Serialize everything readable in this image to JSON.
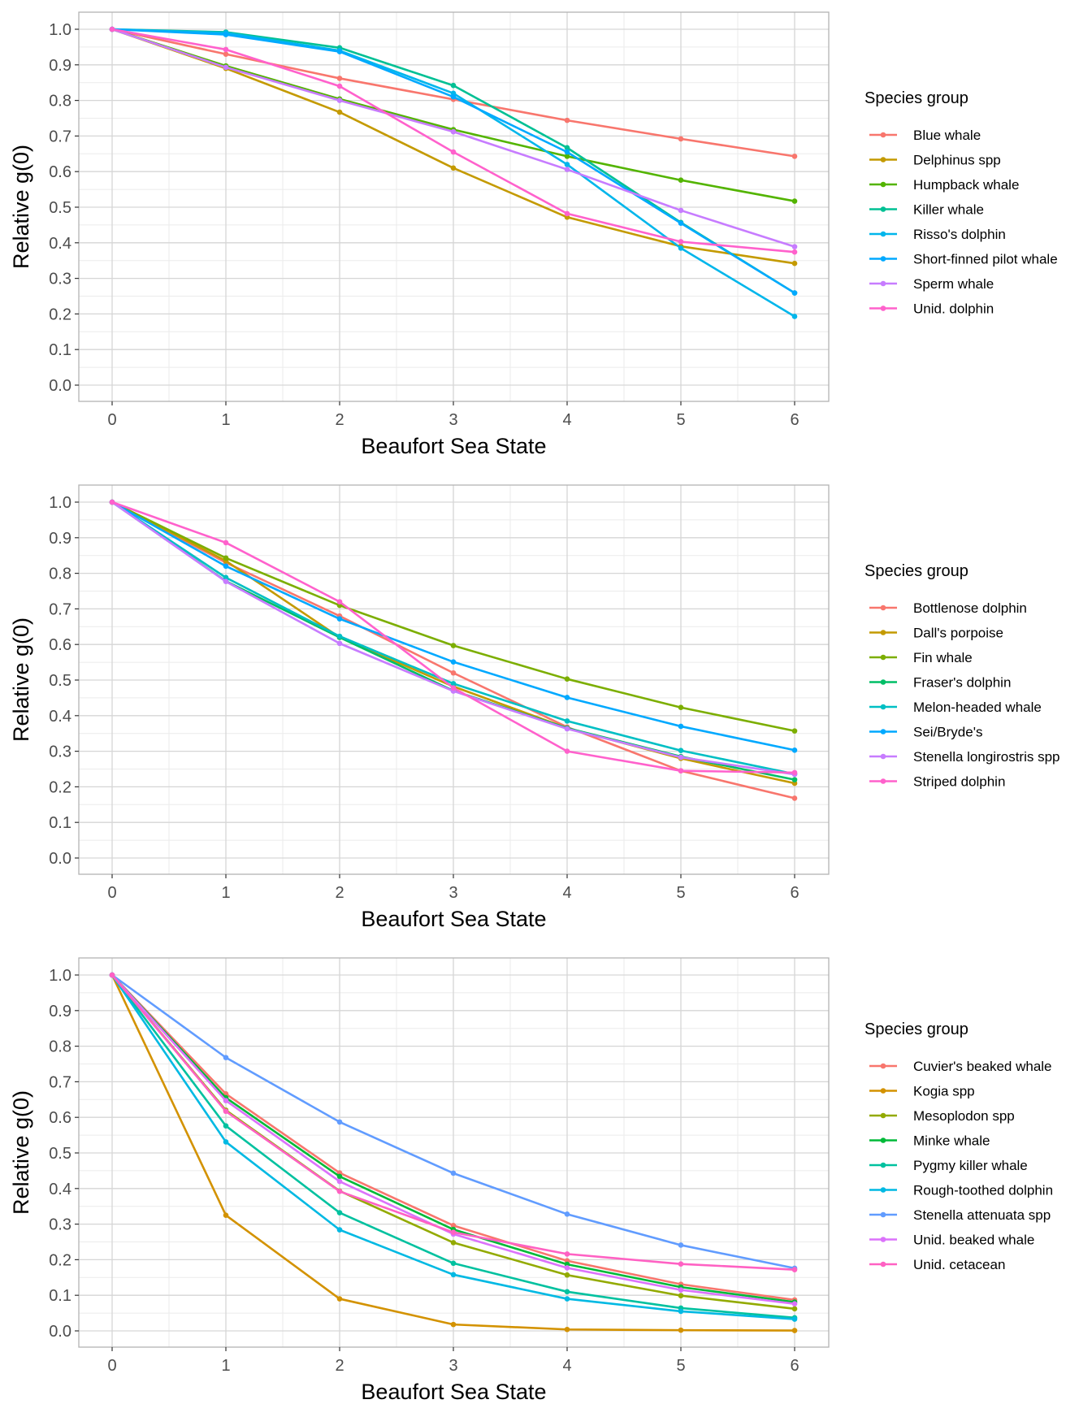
{
  "chart_data": [
    {
      "type": "line",
      "xlabel": "Beaufort Sea State",
      "ylabel": "Relative g(0)",
      "xlim": [
        0,
        6
      ],
      "ylim": [
        0,
        1
      ],
      "x_ticks": [
        "0",
        "1",
        "2",
        "3",
        "4",
        "5",
        "6"
      ],
      "y_ticks": [
        "0.0",
        "0.1",
        "0.2",
        "0.3",
        "0.4",
        "0.5",
        "0.6",
        "0.7",
        "0.8",
        "0.9",
        "1.0"
      ],
      "grid": true,
      "legend_title": "Species group",
      "legend_position": "right",
      "x": [
        0,
        1,
        2,
        3,
        4,
        5,
        6
      ],
      "series": [
        {
          "name": "Blue whale",
          "color": "#F8766D",
          "values": [
            1.0,
            0.93,
            0.862,
            0.803,
            0.744,
            0.692,
            0.643
          ]
        },
        {
          "name": "Delphinus spp",
          "color": "#C49A00",
          "values": [
            1.0,
            0.89,
            0.767,
            0.61,
            0.472,
            0.39,
            0.342
          ]
        },
        {
          "name": "Humpback whale",
          "color": "#53B400",
          "values": [
            1.0,
            0.897,
            0.804,
            0.718,
            0.643,
            0.576,
            0.517
          ]
        },
        {
          "name": "Killer whale",
          "color": "#00C094",
          "values": [
            1.0,
            0.992,
            0.948,
            0.842,
            0.667,
            0.457,
            0.259
          ]
        },
        {
          "name": "Risso's dolphin",
          "color": "#00B6EB",
          "values": [
            1.0,
            0.99,
            0.94,
            0.82,
            0.62,
            0.385,
            0.193
          ]
        },
        {
          "name": "Short-finned pilot whale",
          "color": "#00A9FF",
          "values": [
            1.0,
            0.985,
            0.937,
            0.81,
            0.655,
            0.455,
            0.259
          ]
        },
        {
          "name": "Sperm whale",
          "color": "#C77CFF",
          "values": [
            1.0,
            0.893,
            0.8,
            0.712,
            0.606,
            0.491,
            0.389
          ]
        },
        {
          "name": "Unid. dolphin",
          "color": "#FF61CC",
          "values": [
            1.0,
            0.943,
            0.84,
            0.655,
            0.482,
            0.403,
            0.374
          ]
        }
      ]
    },
    {
      "type": "line",
      "xlabel": "Beaufort Sea State",
      "ylabel": "Relative g(0)",
      "xlim": [
        0,
        6
      ],
      "ylim": [
        0,
        1
      ],
      "x_ticks": [
        "0",
        "1",
        "2",
        "3",
        "4",
        "5",
        "6"
      ],
      "y_ticks": [
        "0.0",
        "0.1",
        "0.2",
        "0.3",
        "0.4",
        "0.5",
        "0.6",
        "0.7",
        "0.8",
        "0.9",
        "1.0"
      ],
      "grid": true,
      "legend_title": "Species group",
      "legend_position": "right",
      "x": [
        0,
        1,
        2,
        3,
        4,
        5,
        6
      ],
      "series": [
        {
          "name": "Bottlenose dolphin",
          "color": "#F8766D",
          "values": [
            1.0,
            0.83,
            0.68,
            0.52,
            0.368,
            0.245,
            0.168
          ]
        },
        {
          "name": "Dall's porpoise",
          "color": "#C49A00",
          "values": [
            1.0,
            0.835,
            0.62,
            0.482,
            0.365,
            0.28,
            0.21
          ]
        },
        {
          "name": "Fin whale",
          "color": "#7CAE00",
          "values": [
            1.0,
            0.843,
            0.71,
            0.597,
            0.503,
            0.423,
            0.357
          ]
        },
        {
          "name": "Fraser's dolphin",
          "color": "#00BE67",
          "values": [
            1.0,
            0.778,
            0.62,
            0.47,
            0.365,
            0.285,
            0.22
          ]
        },
        {
          "name": "Melon-headed whale",
          "color": "#00BFC4",
          "values": [
            1.0,
            0.788,
            0.623,
            0.49,
            0.385,
            0.302,
            0.236
          ]
        },
        {
          "name": "Sei/Bryde's",
          "color": "#00A9FF",
          "values": [
            1.0,
            0.82,
            0.672,
            0.551,
            0.451,
            0.37,
            0.303
          ]
        },
        {
          "name": "Stenella longirostris spp",
          "color": "#C77CFF",
          "values": [
            1.0,
            0.777,
            0.603,
            0.469,
            0.363,
            0.283,
            0.235
          ]
        },
        {
          "name": "Striped dolphin",
          "color": "#FF61CC",
          "values": [
            1.0,
            0.886,
            0.72,
            0.478,
            0.3,
            0.245,
            0.24
          ]
        }
      ]
    },
    {
      "type": "line",
      "xlabel": "Beaufort Sea State",
      "ylabel": "Relative g(0)",
      "xlim": [
        0,
        6
      ],
      "ylim": [
        0,
        1
      ],
      "x_ticks": [
        "0",
        "1",
        "2",
        "3",
        "4",
        "5",
        "6"
      ],
      "y_ticks": [
        "0.0",
        "0.1",
        "0.2",
        "0.3",
        "0.4",
        "0.5",
        "0.6",
        "0.7",
        "0.8",
        "0.9",
        "1.0"
      ],
      "grid": true,
      "legend_title": "Species group",
      "legend_position": "right",
      "x": [
        0,
        1,
        2,
        3,
        4,
        5,
        6
      ],
      "series": [
        {
          "name": "Cuvier's beaked whale",
          "color": "#F8766D",
          "values": [
            1.0,
            0.666,
            0.444,
            0.296,
            0.197,
            0.131,
            0.087
          ]
        },
        {
          "name": "Kogia spp",
          "color": "#D39200",
          "values": [
            1.0,
            0.325,
            0.09,
            0.018,
            0.004,
            0.002,
            0.001
          ]
        },
        {
          "name": "Mesoplodon spp",
          "color": "#93AA00",
          "values": [
            1.0,
            0.62,
            0.393,
            0.248,
            0.157,
            0.099,
            0.062
          ]
        },
        {
          "name": "Minke whale",
          "color": "#00BA38",
          "values": [
            1.0,
            0.655,
            0.434,
            0.285,
            0.187,
            0.123,
            0.081
          ]
        },
        {
          "name": "Pygmy killer whale",
          "color": "#00C19F",
          "values": [
            1.0,
            0.576,
            0.332,
            0.19,
            0.11,
            0.064,
            0.037
          ]
        },
        {
          "name": "Rough-toothed dolphin",
          "color": "#00B9E3",
          "values": [
            1.0,
            0.531,
            0.284,
            0.158,
            0.09,
            0.055,
            0.033
          ]
        },
        {
          "name": "Stenella attenuata spp",
          "color": "#619CFF",
          "values": [
            1.0,
            0.768,
            0.587,
            0.443,
            0.328,
            0.241,
            0.176
          ]
        },
        {
          "name": "Unid. beaked whale",
          "color": "#DB72FB",
          "values": [
            1.0,
            0.647,
            0.42,
            0.272,
            0.177,
            0.115,
            0.076
          ]
        },
        {
          "name": "Unid. cetacean",
          "color": "#FF61C3",
          "values": [
            1.0,
            0.617,
            0.392,
            0.277,
            0.216,
            0.188,
            0.172
          ]
        }
      ]
    }
  ]
}
